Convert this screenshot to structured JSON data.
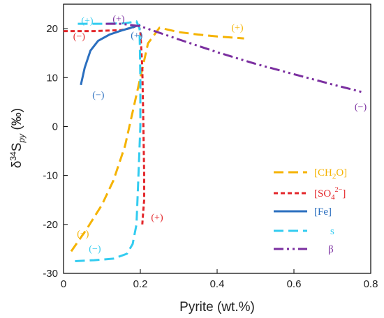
{
  "chart_data": {
    "type": "line",
    "xlabel": "Pyrite (wt.%)",
    "ylabel": "δ34Spy (‰)",
    "xlim": [
      0,
      0.8
    ],
    "ylim": [
      -30,
      25
    ],
    "xticks": [
      0,
      0.2,
      0.4,
      0.6,
      0.8
    ],
    "xtick_labels": [
      "0",
      "0.2",
      "0.4",
      "0.6",
      "0.8"
    ],
    "yticks": [
      -30,
      -20,
      -10,
      0,
      10,
      20
    ],
    "ytick_labels": [
      "-30",
      "-20",
      "-10",
      "0",
      "10",
      "20"
    ],
    "grid": false,
    "legend_position": "bottom-right",
    "series": [
      {
        "name": "[CH2O]",
        "color": "#f5b301",
        "dash": "long-dash",
        "x": [
          0.02,
          0.06,
          0.1,
          0.13,
          0.16,
          0.18,
          0.2,
          0.22,
          0.25,
          0.3,
          0.35,
          0.4,
          0.47
        ],
        "y": [
          -25.5,
          -21,
          -16,
          -11,
          -4,
          3,
          10,
          17,
          20.2,
          19.3,
          18.8,
          18.4,
          18.0
        ]
      },
      {
        "name": "[SO4 2−]",
        "color": "#e3262a",
        "dash": "short-dash",
        "x": [
          0.0,
          0.08,
          0.15,
          0.18,
          0.195,
          0.2,
          0.205,
          0.208,
          0.21,
          0.21,
          0.207,
          0.205
        ],
        "y": [
          19.5,
          19.5,
          19.7,
          20.2,
          20.8,
          19.5,
          12,
          0,
          -10,
          -15,
          -18,
          -20
        ]
      },
      {
        "name": "[Fe]",
        "color": "#2b6fbf",
        "dash": "solid",
        "x": [
          0.045,
          0.055,
          0.07,
          0.09,
          0.12,
          0.15,
          0.18,
          0.2
        ],
        "y": [
          8.5,
          12,
          15.5,
          17.5,
          18.8,
          19.6,
          20.3,
          20.8
        ]
      },
      {
        "name": "s",
        "color": "#33ccf0",
        "dash": "long-dash",
        "x": [
          0.03,
          0.08,
          0.13,
          0.165,
          0.18,
          0.19,
          0.195,
          0.2,
          0.2,
          0.198,
          0.19,
          0.16,
          0.1,
          0.03
        ],
        "y": [
          -27.5,
          -27.3,
          -27,
          -26,
          -24,
          -20,
          -10,
          0,
          10,
          20,
          21.5,
          21.1,
          21.0,
          21.0
        ]
      },
      {
        "name": "β",
        "color": "#7b2fa0",
        "dash": "dash-dot-dot",
        "x": [
          0.11,
          0.15,
          0.2,
          0.3,
          0.4,
          0.5,
          0.6,
          0.7,
          0.78
        ],
        "y": [
          21.0,
          21.0,
          20.5,
          17.8,
          15.2,
          12.8,
          10.7,
          8.6,
          7.0
        ]
      }
    ],
    "annotations": [
      {
        "text": "(+)",
        "x": 0.046,
        "y": 21.0,
        "series": 3
      },
      {
        "text": "(+)",
        "x": 0.128,
        "y": 21.4,
        "series": 4
      },
      {
        "text": "(−)",
        "x": 0.025,
        "y": 17.8,
        "series": 1
      },
      {
        "text": "(+)",
        "x": 0.175,
        "y": 18.0,
        "series": 2
      },
      {
        "text": "(+)",
        "x": 0.437,
        "y": 19.6,
        "series": 0
      },
      {
        "text": "(−)",
        "x": 0.075,
        "y": 5.8,
        "series": 2
      },
      {
        "text": "(−)",
        "x": 0.758,
        "y": 3.4,
        "series": 4
      },
      {
        "text": "(+)",
        "x": 0.228,
        "y": -19.2,
        "series": 1
      },
      {
        "text": "(−)",
        "x": 0.035,
        "y": -22.5,
        "series": 0
      },
      {
        "text": "(−)",
        "x": 0.066,
        "y": -25.6,
        "series": 3
      }
    ]
  },
  "legend": {
    "ch2o_prefix": "[CH",
    "ch2o_sub": "2",
    "ch2o_suffix": "O]",
    "so4_prefix": "[SO",
    "so4_sub": "4",
    "so4_sup": "2−",
    "so4_suffix": "]",
    "fe": "[Fe]",
    "s": "s",
    "beta": "β"
  },
  "ylabel_parts": {
    "delta": "δ",
    "sup": "34",
    "S": "S",
    "sub": "py",
    "unit": " (‰)"
  }
}
